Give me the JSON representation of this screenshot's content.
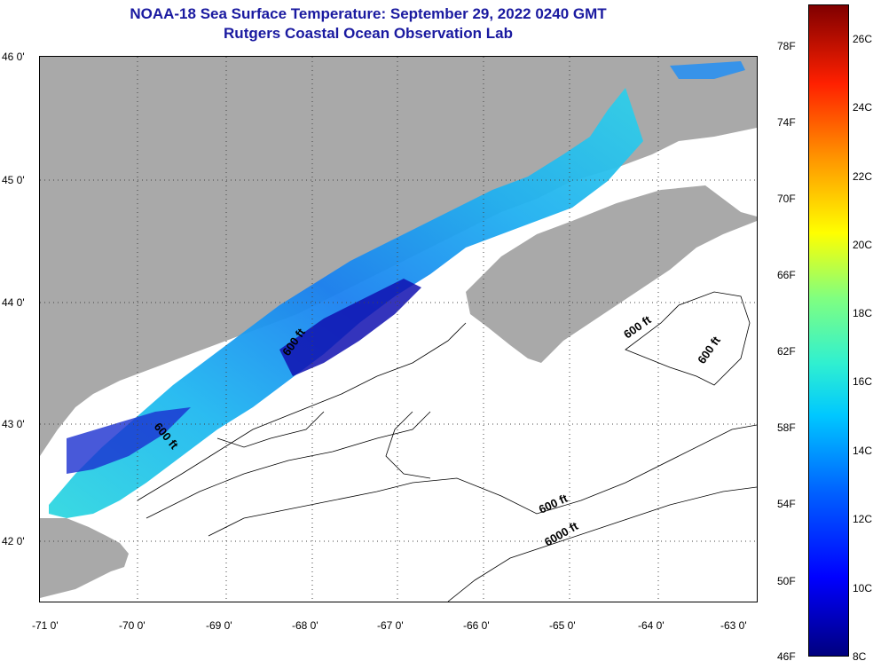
{
  "header": {
    "title": "NOAA-18 Sea Surface Temperature:  September 29, 2022 0240 GMT",
    "subtitle": "Rutgers Coastal Ocean Observation Lab"
  },
  "map": {
    "lat_labels": [
      "46 0'",
      "45 0'",
      "44 0'",
      "43 0'",
      "42 0'"
    ],
    "lon_labels": [
      "-71 0'",
      "-70 0'",
      "-69 0'",
      "-68 0'",
      "-67 0'",
      "-66 0'",
      "-65 0'",
      "-64 0'",
      "-63 0'"
    ],
    "contour_labels": [
      "600 ft",
      "600 ft",
      "600 ft",
      "600 ft",
      "600 ft",
      "6000 ft"
    ],
    "colors": {
      "land": "#a9a9a9",
      "ocean_no_data": "#ffffff",
      "title": "#1a1aa0"
    }
  },
  "colorbar": {
    "fahrenheit": [
      "78F",
      "74F",
      "70F",
      "66F",
      "62F",
      "58F",
      "54F",
      "50F",
      "46F"
    ],
    "celsius": [
      "26C",
      "24C",
      "22C",
      "20C",
      "18C",
      "16C",
      "14C",
      "12C",
      "10C",
      "8C"
    ],
    "range_c": [
      8,
      27
    ]
  }
}
